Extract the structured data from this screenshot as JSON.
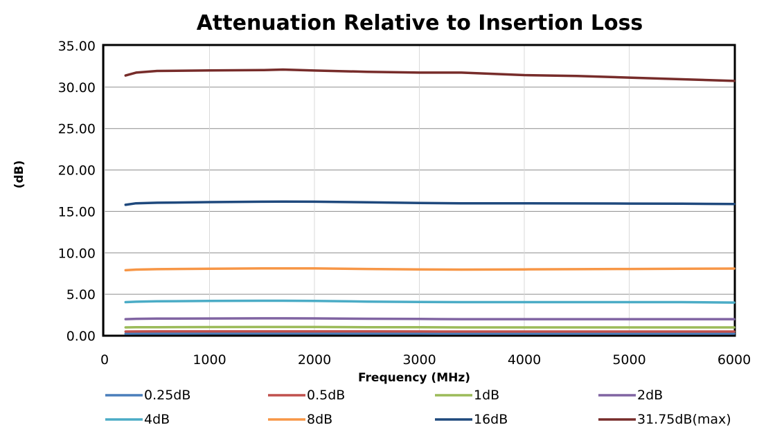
{
  "chart_data": {
    "type": "line",
    "title": "Attenuation Relative to Insertion Loss",
    "xlabel": "Frequency (MHz)",
    "ylabel": "(dB)",
    "xlim": [
      0,
      6000
    ],
    "ylim": [
      0,
      35
    ],
    "x_ticks": [
      "0",
      "1000",
      "2000",
      "3000",
      "4000",
      "5000",
      "6000"
    ],
    "y_ticks": [
      "0.00",
      "5.00",
      "10.00",
      "15.00",
      "20.00",
      "25.00",
      "30.00",
      "35.00"
    ],
    "grid": "on",
    "legend_position": "bottom",
    "x": [
      200,
      300,
      500,
      1000,
      1500,
      1700,
      2000,
      2500,
      3000,
      3400,
      4000,
      4500,
      5000,
      5500,
      6000
    ],
    "series": [
      {
        "name": "0.25dB",
        "color": "#4a7ebb",
        "values": [
          0.25,
          0.26,
          0.26,
          0.27,
          0.27,
          0.27,
          0.27,
          0.26,
          0.26,
          0.25,
          0.25,
          0.25,
          0.25,
          0.25,
          0.25
        ]
      },
      {
        "name": "0.5dB",
        "color": "#c0504d",
        "values": [
          0.5,
          0.51,
          0.52,
          0.53,
          0.53,
          0.53,
          0.53,
          0.52,
          0.51,
          0.5,
          0.5,
          0.5,
          0.5,
          0.5,
          0.5
        ]
      },
      {
        "name": "1dB",
        "color": "#9bbb59",
        "values": [
          1.0,
          1.02,
          1.03,
          1.04,
          1.05,
          1.05,
          1.05,
          1.03,
          1.02,
          1.0,
          1.0,
          1.0,
          1.0,
          1.0,
          1.0
        ]
      },
      {
        "name": "2dB",
        "color": "#8064a2",
        "values": [
          2.0,
          2.04,
          2.06,
          2.08,
          2.1,
          2.1,
          2.09,
          2.05,
          2.02,
          2.0,
          2.0,
          2.0,
          2.0,
          2.0,
          2.0
        ]
      },
      {
        "name": "4dB",
        "color": "#4bacc6",
        "values": [
          4.05,
          4.1,
          4.15,
          4.2,
          4.22,
          4.22,
          4.2,
          4.12,
          4.07,
          4.05,
          4.05,
          4.05,
          4.05,
          4.05,
          4.0
        ]
      },
      {
        "name": "8dB",
        "color": "#f79646",
        "values": [
          7.9,
          7.98,
          8.03,
          8.08,
          8.12,
          8.12,
          8.12,
          8.05,
          8.0,
          7.98,
          8.0,
          8.03,
          8.05,
          8.08,
          8.1
        ]
      },
      {
        "name": "16dB",
        "color": "#1f497d",
        "values": [
          15.8,
          15.98,
          16.05,
          16.12,
          16.17,
          16.18,
          16.17,
          16.1,
          16.02,
          15.98,
          15.97,
          15.96,
          15.95,
          15.93,
          15.9
        ]
      },
      {
        "name": "31.75dB(max)",
        "color": "#772c2a",
        "values": [
          31.4,
          31.75,
          31.95,
          32.02,
          32.05,
          32.12,
          32.0,
          31.85,
          31.75,
          31.75,
          31.45,
          31.35,
          31.15,
          30.95,
          30.75
        ]
      }
    ]
  }
}
